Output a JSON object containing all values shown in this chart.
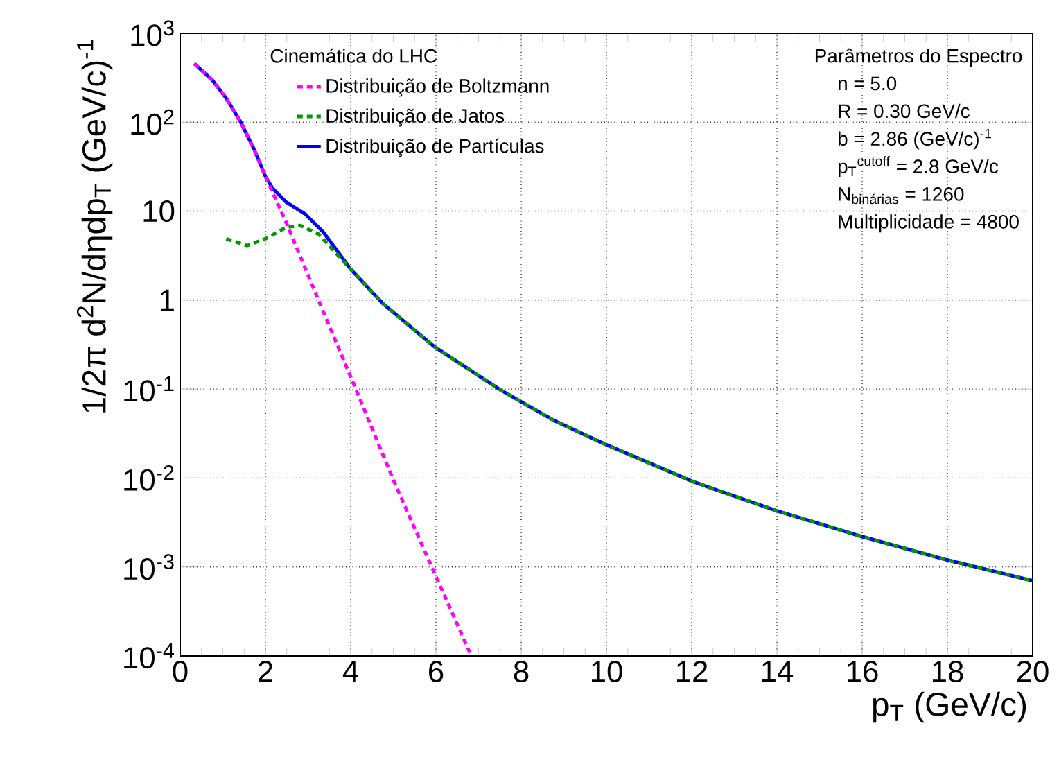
{
  "chart_data": {
    "type": "line",
    "xlabel": "p$_{T}$ (GeV/c)",
    "ylabel": "1/2π d$^{2}$N/dηdp$_{T}$ (GeV/c)$^{-1}$",
    "legend_title": "Cinemática do LHC",
    "legend": "top",
    "grid": true,
    "log": "y",
    "xlim": [
      0,
      20
    ],
    "ylim": [
      0.0001,
      1000
    ],
    "xticks": [
      0,
      2,
      4,
      6,
      8,
      10,
      12,
      14,
      16,
      18,
      20
    ],
    "yticks": [
      {
        "value": 0.0001,
        "label": "10$^{-4}$"
      },
      {
        "value": 0.001,
        "label": "10$^{-3}$"
      },
      {
        "value": 0.01,
        "label": "10$^{-2}$"
      },
      {
        "value": 0.1,
        "label": "10$^{-1}$"
      },
      {
        "value": 1,
        "label": "1"
      },
      {
        "value": 10,
        "label": "10"
      },
      {
        "value": 100,
        "label": "10$^{2}$"
      },
      {
        "value": 1000,
        "label": "10$^{3}$"
      }
    ],
    "series": [
      {
        "name": "Distribuição de Boltzmann",
        "color": "#ff00ff",
        "line_style": "dashed",
        "x": [
          0.33,
          0.76,
          1.08,
          1.41,
          1.73,
          2.0,
          2.49,
          2.93,
          3.25,
          4.12,
          4.99,
          5.91,
          6.83
        ],
        "values": [
          457,
          295,
          186,
          102,
          50,
          24.5,
          7.4,
          2.3,
          0.98,
          0.1,
          0.0098,
          0.00098,
          0.0001
        ]
      },
      {
        "name": "Distribuição de Jatos",
        "color": "#009900",
        "line_style": "dashed",
        "x": [
          1.08,
          1.57,
          2.0,
          2.49,
          2.82,
          3.25,
          4.01,
          4.77,
          5.96,
          7.48,
          8.78,
          9.97,
          12.03,
          13.98,
          15.99,
          17.99,
          20
        ],
        "values": [
          4.9,
          4.1,
          4.9,
          6.6,
          6.9,
          5.5,
          2.2,
          0.9,
          0.3,
          0.1,
          0.044,
          0.024,
          0.0091,
          0.0043,
          0.0022,
          0.0012,
          0.0007
        ]
      },
      {
        "name": "Distribuição de Partículas",
        "color": "#0000ff",
        "line_style": "solid",
        "x": [
          0.33,
          0.76,
          1.08,
          1.41,
          1.73,
          2.0,
          2.17,
          2.49,
          2.93,
          3.36,
          4.01,
          4.77,
          5.96,
          7.48,
          8.78,
          9.97,
          12.03,
          13.98,
          15.99,
          17.99,
          20
        ],
        "values": [
          457,
          295,
          186,
          102,
          50,
          24.5,
          18,
          12.6,
          9.3,
          5.8,
          2.2,
          0.9,
          0.3,
          0.1,
          0.044,
          0.024,
          0.0091,
          0.0043,
          0.0022,
          0.0012,
          0.0007
        ]
      }
    ],
    "annotations": [
      "Parâmetros do Espectro",
      "n = 5.0",
      "R = 0.30 GeV/c",
      "b = 2.86 (GeV/c)$^{-1}$",
      "p$_{T}$$^{cutoff}$ = 2.8 GeV/c",
      "N$_{binárias}$ = 1260",
      "Multiplicidade = 4800"
    ]
  }
}
